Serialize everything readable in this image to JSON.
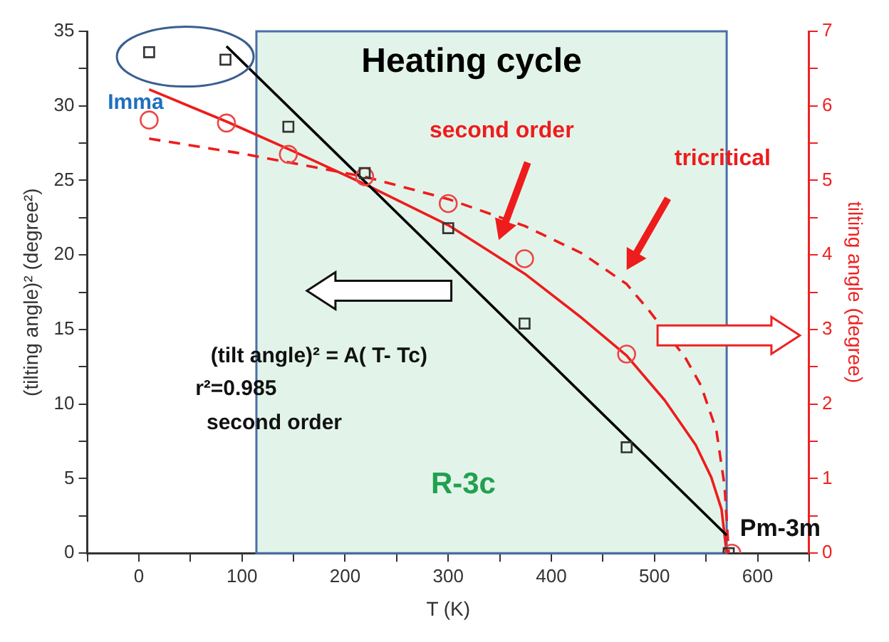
{
  "chart_data": {
    "type": "scatter",
    "title": "Heating cycle",
    "xlabel": "T (K)",
    "ylabel": "(tilting angle)² (degree²)",
    "y2label": "tilting angle (degree)",
    "xlim": [
      -50,
      650
    ],
    "xticks": [
      {
        "value": -50,
        "label": null
      },
      0,
      {
        "value": 50,
        "label": null
      },
      100,
      {
        "value": 150,
        "label": null
      },
      200,
      {
        "value": 250,
        "label": null
      },
      300,
      {
        "value": 350,
        "label": null
      },
      400,
      {
        "value": 450,
        "label": null
      },
      500,
      {
        "value": 550,
        "label": null
      },
      600,
      {
        "value": 650,
        "label": null
      }
    ],
    "ylim": [
      0,
      35
    ],
    "yticks": [
      0,
      {
        "value": 2.5,
        "label": null
      },
      5,
      {
        "value": 7.5,
        "label": null
      },
      10,
      {
        "value": 12.5,
        "label": null
      },
      15,
      {
        "value": 17.5,
        "label": null
      },
      20,
      {
        "value": 22.5,
        "label": null
      },
      25,
      {
        "value": 27.5,
        "label": null
      },
      30,
      {
        "value": 32.5,
        "label": null
      },
      35
    ],
    "y2lim": [
      0,
      7
    ],
    "y2ticks": [
      0,
      {
        "value": 0.5,
        "label": null
      },
      1,
      {
        "value": 1.5,
        "label": null
      },
      2,
      {
        "value": 2.5,
        "label": null
      },
      3,
      {
        "value": 3.5,
        "label": null
      },
      4,
      {
        "value": 4.5,
        "label": null
      },
      5,
      {
        "value": 5.5,
        "label": null
      },
      6,
      {
        "value": 6.5,
        "label": null
      },
      7
    ],
    "legend": false,
    "grid": false,
    "series": [
      {
        "type": "scatter",
        "marker": "square",
        "color": "#333333",
        "x": [
          10,
          84,
          145,
          219,
          300,
          374,
          473,
          572
        ],
        "values": [
          33.6,
          33.1,
          28.6,
          25.5,
          21.8,
          15.4,
          7.1,
          0
        ]
      },
      {
        "type": "line",
        "marker": "none",
        "color": "#000000",
        "x": [
          85,
          570
        ],
        "values": [
          34,
          1.2
        ]
      },
      {
        "type": "scatter",
        "marker": "circle",
        "axis": "y2",
        "color": "#ee4444",
        "x": [
          10,
          85,
          145,
          219,
          300,
          374,
          473,
          575
        ],
        "values": [
          5.81,
          5.77,
          5.35,
          5.05,
          4.69,
          3.95,
          2.67,
          0
        ]
      },
      {
        "type": "line",
        "marker": "none",
        "axis": "y2",
        "color": "#ee1c1c",
        "line_style": "solid",
        "x": [
          10,
          85,
          150,
          219,
          300,
          374,
          430,
          473,
          510,
          540,
          555,
          565,
          570
        ],
        "values": [
          6.22,
          5.79,
          5.39,
          4.95,
          4.4,
          3.75,
          3.15,
          2.65,
          2.05,
          1.45,
          1.02,
          0.59,
          0
        ]
      },
      {
        "type": "line",
        "marker": "none",
        "axis": "y2",
        "color": "#ee1c1c",
        "line_style": "dashed",
        "x": [
          10,
          100,
          219,
          300,
          374,
          430,
          473,
          495,
          530,
          545,
          560,
          568,
          572
        ],
        "values": [
          5.56,
          5.36,
          5.05,
          4.75,
          4.39,
          4.02,
          3.61,
          3.25,
          2.62,
          2.25,
          1.65,
          0.9,
          0
        ]
      }
    ],
    "bands": [
      {
        "axis": "x",
        "from": 114,
        "to": 570,
        "label": "R-3c",
        "color": "#e2f4ea"
      }
    ],
    "annotations": [
      "Imma",
      "second order",
      "tricritical",
      "(tilt angle)² = A( T- Tc)",
      "r²=0.985",
      "second order",
      "Pm-3m"
    ]
  }
}
